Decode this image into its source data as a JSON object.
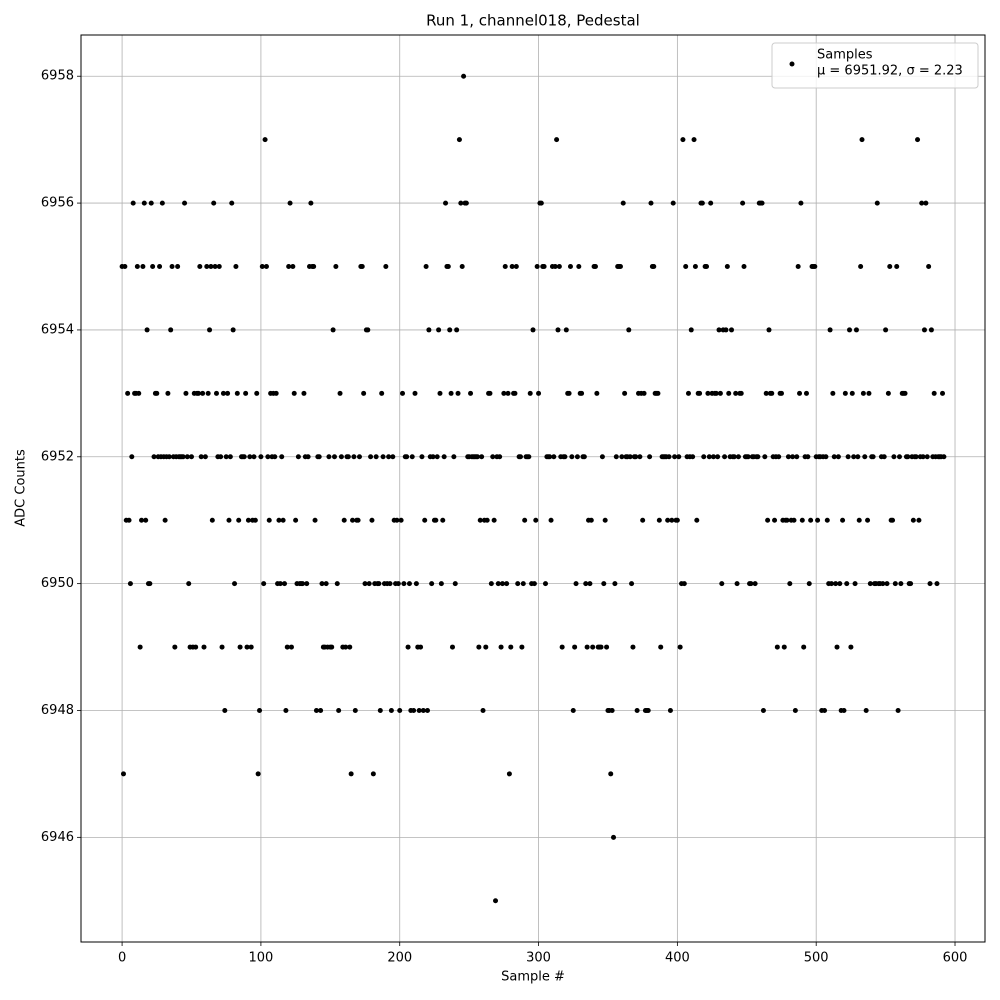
{
  "chart_data": {
    "type": "scatter",
    "title": "Run 1, channel018, Pedestal",
    "x_label": "Sample #",
    "y_label": "ADC Counts",
    "xlim": [
      -29.6,
      621.6
    ],
    "ylim": [
      6944.35,
      6958.65
    ],
    "xticks": [
      0,
      100,
      200,
      300,
      400,
      500,
      600
    ],
    "yticks": [
      6946,
      6948,
      6950,
      6952,
      6954,
      6956,
      6958
    ],
    "grid": true,
    "legend_position": "upper right",
    "legend_note": "μ = 6951.92, σ = 2.23",
    "x": [
      0,
      1,
      2,
      3,
      4,
      5,
      6,
      7,
      8,
      9,
      10,
      11,
      12,
      13,
      14,
      15,
      16,
      17,
      18,
      19,
      20,
      21,
      22,
      23,
      24,
      25,
      26,
      27,
      28,
      29,
      30,
      31,
      32,
      33,
      34,
      35,
      36,
      37,
      38,
      39,
      40,
      41,
      42,
      43,
      44,
      45,
      46,
      47,
      48,
      49,
      50,
      51,
      52,
      53,
      54,
      55,
      56,
      57,
      58,
      59,
      60,
      61,
      62,
      63,
      64,
      65,
      66,
      67,
      68,
      69,
      70,
      71,
      72,
      73,
      74,
      75,
      76,
      77,
      78,
      79,
      80,
      81,
      82,
      83,
      84,
      85,
      86,
      87,
      88,
      89,
      90,
      91,
      92,
      93,
      94,
      95,
      96,
      97,
      98,
      99,
      100,
      101,
      102,
      103,
      104,
      105,
      106,
      107,
      108,
      109,
      110,
      111,
      112,
      113,
      114,
      115,
      116,
      117,
      118,
      119,
      120,
      121,
      122,
      123,
      124,
      125,
      126,
      127,
      128,
      129,
      130,
      131,
      132,
      133,
      134,
      135,
      136,
      137,
      138,
      139,
      140,
      141,
      142,
      143,
      144,
      145,
      146,
      147,
      148,
      149,
      150,
      151,
      152,
      153,
      154,
      155,
      156,
      157,
      158,
      159,
      160,
      161,
      162,
      163,
      164,
      165,
      166,
      167,
      168,
      169,
      170,
      171,
      172,
      173,
      174,
      175,
      176,
      177,
      178,
      179,
      180,
      181,
      182,
      183,
      184,
      185,
      186,
      187,
      188,
      189,
      190,
      191,
      192,
      193,
      194,
      195,
      196,
      197,
      198,
      199,
      200,
      201,
      202,
      203,
      204,
      205,
      206,
      207,
      208,
      209,
      210,
      211,
      212,
      213,
      214,
      215,
      216,
      217,
      218,
      219,
      220,
      221,
      222,
      223,
      224,
      225,
      226,
      227,
      228,
      229,
      230,
      231,
      232,
      233,
      234,
      235,
      236,
      237,
      238,
      239,
      240,
      241,
      242,
      243,
      244,
      245,
      246,
      247,
      248,
      249,
      250,
      251,
      252,
      253,
      254,
      255,
      256,
      257,
      258,
      259,
      260,
      261,
      262,
      263,
      264,
      265,
      266,
      267,
      268,
      269,
      270,
      271,
      272,
      273,
      274,
      275,
      276,
      277,
      278,
      279,
      280,
      281,
      282,
      283,
      284,
      285,
      286,
      287,
      288,
      289,
      290,
      291,
      292,
      293,
      294,
      295,
      296,
      297,
      298,
      299,
      300,
      301,
      302,
      303,
      304,
      305,
      306,
      307,
      308,
      309,
      310,
      311,
      312,
      313,
      314,
      315,
      316,
      317,
      318,
      319,
      320,
      321,
      322,
      323,
      324,
      325,
      326,
      327,
      328,
      329,
      330,
      331,
      332,
      333,
      334,
      335,
      336,
      337,
      338,
      339,
      340,
      341,
      342,
      343,
      344,
      345,
      346,
      347,
      348,
      349,
      350,
      351,
      352,
      353,
      354,
      355,
      356,
      357,
      358,
      359,
      360,
      361,
      362,
      363,
      364,
      365,
      366,
      367,
      368,
      369,
      370,
      371,
      372,
      373,
      374,
      375,
      376,
      377,
      378,
      379,
      380,
      381,
      382,
      383,
      384,
      385,
      386,
      387,
      388,
      389,
      390,
      391,
      392,
      393,
      394,
      395,
      396,
      397,
      398,
      399,
      400,
      401,
      402,
      403,
      404,
      405,
      406,
      407,
      408,
      409,
      410,
      411,
      412,
      413,
      414,
      415,
      416,
      417,
      418,
      419,
      420,
      421,
      422,
      423,
      424,
      425,
      426,
      427,
      428,
      429,
      430,
      431,
      432,
      433,
      434,
      435,
      436,
      437,
      438,
      439,
      440,
      441,
      442,
      443,
      444,
      445,
      446,
      447,
      448,
      449,
      450,
      451,
      452,
      453,
      454,
      455,
      456,
      457,
      458,
      459,
      460,
      461,
      462,
      463,
      464,
      465,
      466,
      467,
      468,
      469,
      470,
      471,
      472,
      473,
      474,
      475,
      476,
      477,
      478,
      479,
      480,
      481,
      482,
      483,
      484,
      485,
      486,
      487,
      488,
      489,
      490,
      491,
      492,
      493,
      494,
      495,
      496,
      497,
      498,
      499,
      500,
      501,
      502,
      503,
      504,
      505,
      506,
      507,
      508,
      509,
      510,
      511,
      512,
      513,
      514,
      515,
      516,
      517,
      518,
      519,
      520,
      521,
      522,
      523,
      524,
      525,
      526,
      527,
      528,
      529,
      530,
      531,
      532,
      533,
      534,
      535,
      536,
      537,
      538,
      539,
      540,
      541,
      542,
      543,
      544,
      545,
      546,
      547,
      548,
      549,
      550,
      551,
      552,
      553,
      554,
      555,
      556,
      557,
      558,
      559,
      560,
      561,
      562,
      563,
      564,
      565,
      566,
      567,
      568,
      569,
      570,
      571,
      572,
      573,
      574,
      575,
      576,
      577,
      578,
      579,
      580,
      581,
      582,
      583,
      584,
      585,
      586,
      587,
      588,
      589,
      590,
      591,
      592
    ],
    "series": [
      {
        "name": "Samples",
        "color": "#000000",
        "values": [
          6955,
          6947,
          6955,
          6951,
          6953,
          6951,
          6950,
          6952,
          6956,
          6953,
          6953,
          6955,
          6953,
          6949,
          6951,
          6955,
          6956,
          6951,
          6954,
          6950,
          6950,
          6956,
          6955,
          6952,
          6953,
          6953,
          6952,
          6955,
          6952,
          6956,
          6952,
          6951,
          6952,
          6953,
          6952,
          6954,
          6955,
          6952,
          6949,
          6952,
          6955,
          6952,
          6952,
          6952,
          6952,
          6956,
          6953,
          6952,
          6950,
          6949,
          6952,
          6949,
          6953,
          6949,
          6953,
          6953,
          6955,
          6952,
          6953,
          6949,
          6952,
          6955,
          6953,
          6954,
          6955,
          6951,
          6956,
          6955,
          6953,
          6952,
          6955,
          6952,
          6949,
          6953,
          6948,
          6952,
          6953,
          6951,
          6952,
          6956,
          6954,
          6950,
          6955,
          6953,
          6951,
          6949,
          6952,
          6952,
          6952,
          6953,
          6949,
          6951,
          6952,
          6949,
          6951,
          6952,
          6951,
          6953,
          6947,
          6948,
          6952,
          6955,
          6950,
          6957,
          6955,
          6952,
          6951,
          6953,
          6952,
          6953,
          6952,
          6953,
          6950,
          6951,
          6950,
          6952,
          6951,
          6950,
          6948,
          6949,
          6955,
          6956,
          6949,
          6955,
          6953,
          6951,
          6950,
          6952,
          6950,
          6950,
          6950,
          6953,
          6952,
          6950,
          6952,
          6955,
          6956,
          6955,
          6955,
          6951,
          6948,
          6952,
          6952,
          6948,
          6950,
          6949,
          6949,
          6950,
          6949,
          6952,
          6949,
          6949,
          6954,
          6952,
          6955,
          6950,
          6948,
          6953,
          6952,
          6949,
          6951,
          6949,
          6952,
          6952,
          6949,
          6947,
          6951,
          6952,
          6948,
          6951,
          6951,
          6952,
          6955,
          6955,
          6953,
          6950,
          6954,
          6954,
          6950,
          6952,
          6951,
          6947,
          6950,
          6952,
          6950,
          6950,
          6948,
          6953,
          6952,
          6950,
          6955,
          6950,
          6952,
          6950,
          6948,
          6952,
          6951,
          6950,
          6951,
          6950,
          6948,
          6951,
          6953,
          6950,
          6952,
          6952,
          6949,
          6950,
          6948,
          6952,
          6948,
          6953,
          6950,
          6949,
          6948,
          6949,
          6952,
          6948,
          6951,
          6955,
          6948,
          6954,
          6952,
          6950,
          6952,
          6951,
          6951,
          6952,
          6954,
          6953,
          6950,
          6951,
          6952,
          6956,
          6955,
          6955,
          6954,
          6953,
          6949,
          6952,
          6950,
          6954,
          6953,
          6957,
          6956,
          6955,
          6958,
          6956,
          6956,
          6952,
          6952,
          6953,
          6952,
          6952,
          6952,
          6952,
          6952,
          6949,
          6951,
          6952,
          6948,
          6951,
          6949,
          6951,
          6953,
          6953,
          6950,
          6952,
          6951,
          6945,
          6952,
          6950,
          6952,
          6949,
          6950,
          6953,
          6955,
          6950,
          6953,
          6947,
          6949,
          6955,
          6953,
          6953,
          6955,
          6950,
          6952,
          6952,
          6949,
          6950,
          6951,
          6952,
          6952,
          6952,
          6953,
          6950,
          6954,
          6950,
          6951,
          6955,
          6953,
          6956,
          6956,
          6955,
          6955,
          6950,
          6952,
          6952,
          6952,
          6951,
          6955,
          6952,
          6955,
          6957,
          6954,
          6955,
          6952,
          6949,
          6952,
          6952,
          6954,
          6953,
          6953,
          6955,
          6952,
          6948,
          6949,
          6950,
          6952,
          6955,
          6953,
          6953,
          6952,
          6952,
          6950,
          6949,
          6951,
          6950,
          6951,
          6949,
          6955,
          6955,
          6953,
          6949,
          6949,
          6949,
          6952,
          6950,
          6951,
          6949,
          6948,
          6948,
          6947,
          6948,
          6946,
          6950,
          6952,
          6955,
          6955,
          6955,
          6952,
          6956,
          6953,
          6952,
          6952,
          6954,
          6952,
          6950,
          6949,
          6952,
          6952,
          6948,
          6953,
          6952,
          6953,
          6951,
          6953,
          6948,
          6948,
          6948,
          6952,
          6956,
          6955,
          6955,
          6953,
          6953,
          6953,
          6951,
          6949,
          6952,
          6952,
          6952,
          6952,
          6951,
          6952,
          6948,
          6951,
          6956,
          6952,
          6951,
          6951,
          6952,
          6949,
          6950,
          6957,
          6950,
          6955,
          6952,
          6953,
          6952,
          6954,
          6952,
          6957,
          6955,
          6951,
          6953,
          6953,
          6956,
          6956,
          6952,
          6955,
          6955,
          6953,
          6952,
          6956,
          6953,
          6952,
          6953,
          6953,
          6952,
          6954,
          6953,
          6950,
          6954,
          6952,
          6954,
          6955,
          6953,
          6952,
          6954,
          6952,
          6952,
          6953,
          6950,
          6952,
          6953,
          6953,
          6956,
          6955,
          6952,
          6952,
          6952,
          6950,
          6950,
          6952,
          6952,
          6950,
          6952,
          6952,
          6956,
          6956,
          6956,
          6948,
          6952,
          6953,
          6951,
          6954,
          6953,
          6953,
          6952,
          6951,
          6952,
          6949,
          6952,
          6953,
          6953,
          6951,
          6949,
          6951,
          6951,
          6952,
          6950,
          6951,
          6952,
          6951,
          6948,
          6952,
          6955,
          6953,
          6956,
          6951,
          6949,
          6952,
          6953,
          6952,
          6950,
          6951,
          6955,
          6955,
          6955,
          6952,
          6951,
          6952,
          6952,
          6948,
          6952,
          6948,
          6952,
          6951,
          6950,
          6954,
          6950,
          6953,
          6952,
          6950,
          6949,
          6952,
          6950,
          6948,
          6951,
          6948,
          6953,
          6950,
          6952,
          6954,
          6949,
          6953,
          6952,
          6950,
          6954,
          6952,
          6951,
          6955,
          6957,
          6953,
          6952,
          6948,
          6951,
          6953,
          6950,
          6952,
          6952,
          6950,
          6950,
          6956,
          6950,
          6950,
          6952,
          6950,
          6952,
          6954,
          6950,
          6953,
          6955,
          6951,
          6951,
          6952,
          6950,
          6955,
          6948,
          6952,
          6950,
          6953,
          6953,
          6953,
          6952,
          6952,
          6950,
          6950,
          6952,
          6951,
          6952,
          6952,
          6957,
          6951,
          6952,
          6956,
          6952,
          6954,
          6956,
          6952,
          6955,
          6950,
          6954,
          6952,
          6953,
          6952,
          6950,
          6952,
          6952,
          6952,
          6953,
          6952
        ]
      }
    ]
  }
}
